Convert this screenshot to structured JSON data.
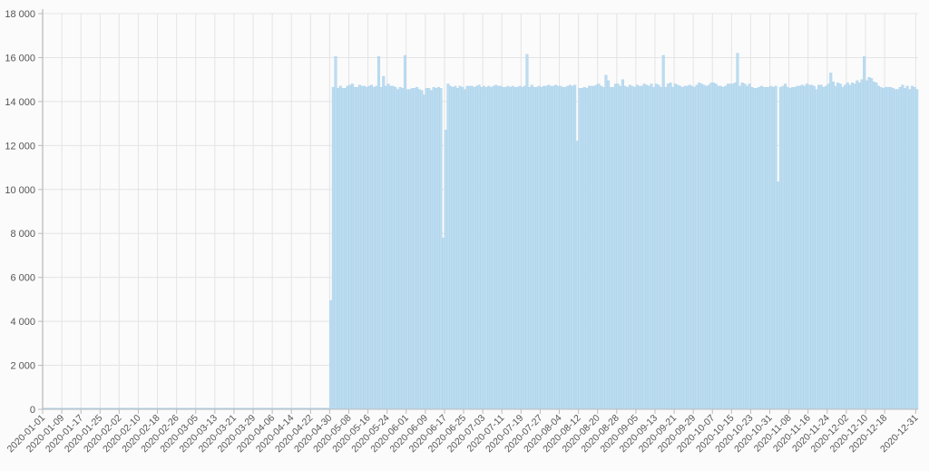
{
  "chart_data": {
    "type": "bar",
    "title": "",
    "xlabel": "",
    "ylabel": "",
    "ylim": [
      0,
      18000
    ],
    "yticks": [
      "0",
      "2 000",
      "4 000",
      "6 000",
      "8 000",
      "10 000",
      "12 000",
      "14 000",
      "16 000",
      "18 000"
    ],
    "ytick_values": [
      0,
      2000,
      4000,
      6000,
      8000,
      10000,
      12000,
      14000,
      16000,
      18000
    ],
    "grid": true,
    "bar_color": "#bcdcf0",
    "bar_edge_color": "#a8d0ea",
    "x_start": "2020-01-01",
    "x_end": "2020-12-31",
    "xtick_labels": [
      "2020-01-01",
      "2020-01-09",
      "2020-01-17",
      "2020-01-25",
      "2020-02-02",
      "2020-02-10",
      "2020-02-18",
      "2020-02-26",
      "2020-03-05",
      "2020-03-13",
      "2020-03-21",
      "2020-03-29",
      "2020-04-06",
      "2020-04-14",
      "2020-04-22",
      "2020-04-30",
      "2020-05-08",
      "2020-05-16",
      "2020-05-24",
      "2020-06-01",
      "2020-06-09",
      "2020-06-17",
      "2020-06-25",
      "2020-07-03",
      "2020-07-11",
      "2020-07-19",
      "2020-07-27",
      "2020-08-04",
      "2020-08-12",
      "2020-08-20",
      "2020-08-28",
      "2020-09-05",
      "2020-09-13",
      "2020-09-21",
      "2020-09-29",
      "2020-10-07",
      "2020-10-15",
      "2020-10-23",
      "2020-10-31",
      "2020-11-08",
      "2020-11-16",
      "2020-11-24",
      "2020-12-02",
      "2020-12-10",
      "2020-12-18",
      "2020-12-31"
    ],
    "values": [
      0,
      0,
      0,
      0,
      0,
      0,
      0,
      0,
      0,
      0,
      0,
      0,
      0,
      0,
      0,
      0,
      0,
      0,
      0,
      0,
      0,
      0,
      0,
      0,
      0,
      0,
      0,
      0,
      0,
      0,
      0,
      0,
      0,
      0,
      0,
      0,
      0,
      0,
      0,
      0,
      0,
      0,
      0,
      0,
      0,
      0,
      0,
      0,
      0,
      0,
      0,
      0,
      0,
      0,
      0,
      0,
      0,
      0,
      0,
      0,
      0,
      0,
      0,
      0,
      0,
      0,
      0,
      0,
      0,
      0,
      0,
      0,
      0,
      0,
      0,
      0,
      0,
      0,
      0,
      0,
      0,
      0,
      0,
      0,
      0,
      0,
      0,
      0,
      0,
      0,
      0,
      0,
      0,
      0,
      0,
      0,
      0,
      0,
      0,
      0,
      0,
      0,
      0,
      0,
      0,
      0,
      0,
      0,
      0,
      0,
      0,
      0,
      0,
      0,
      0,
      0,
      0,
      0,
      0,
      0,
      4950,
      14650,
      16050,
      14600,
      14700,
      14600,
      14600,
      14700,
      14750,
      14800,
      14650,
      14650,
      14750,
      14700,
      14700,
      14650,
      14700,
      14750,
      14650,
      14700,
      16050,
      14650,
      15150,
      14700,
      14800,
      14700,
      14700,
      14650,
      14550,
      14650,
      14600,
      16100,
      14550,
      14550,
      14600,
      14600,
      14650,
      14550,
      14500,
      14300,
      14600,
      14600,
      14500,
      14650,
      14600,
      14650,
      14600,
      7800,
      12700,
      14800,
      14700,
      14650,
      14700,
      14600,
      14700,
      14650,
      14550,
      14700,
      14700,
      14700,
      14650,
      14700,
      14750,
      14650,
      14700,
      14650,
      14700,
      14650,
      14700,
      14750,
      14700,
      14700,
      14650,
      14650,
      14700,
      14650,
      14700,
      14650,
      14650,
      14700,
      14650,
      14700,
      16150,
      14650,
      14750,
      14650,
      14650,
      14700,
      14650,
      14700,
      14700,
      14750,
      14700,
      14700,
      14750,
      14700,
      14700,
      14650,
      14650,
      14700,
      14750,
      14700,
      14750,
      12200,
      14600,
      14600,
      14650,
      14600,
      14700,
      14700,
      14700,
      14750,
      14800,
      14700,
      14650,
      15200,
      14950,
      14650,
      14650,
      14800,
      14800,
      14700,
      15000,
      14700,
      14650,
      14750,
      14700,
      14650,
      14750,
      14700,
      14700,
      14800,
      14750,
      14700,
      14800,
      14650,
      14800,
      14750,
      14650,
      16100,
      14650,
      14800,
      14850,
      14650,
      14800,
      14750,
      14700,
      14650,
      14700,
      14700,
      14750,
      14700,
      14650,
      14750,
      14850,
      14800,
      14750,
      14700,
      14750,
      14850,
      14850,
      14800,
      14700,
      14700,
      14650,
      14700,
      14800,
      14800,
      14800,
      14850,
      16200,
      14700,
      14850,
      14800,
      14700,
      14800,
      14650,
      14600,
      14600,
      14650,
      14700,
      14650,
      14650,
      14650,
      14700,
      14650,
      14700,
      10350,
      14650,
      14700,
      14800,
      14650,
      14600,
      14650,
      14650,
      14700,
      14700,
      14750,
      14700,
      14800,
      14750,
      14750,
      14700,
      14550,
      14750,
      14750,
      14650,
      14700,
      14800,
      15300,
      14900,
      14700,
      14850,
      14800,
      14650,
      14750,
      14850,
      14750,
      14850,
      14800,
      14950,
      14850,
      15000,
      16050,
      14950,
      15100,
      15050,
      14900,
      14850,
      14700,
      14650,
      14600,
      14650,
      14650,
      14650,
      14600,
      14550,
      14550,
      14650,
      14750,
      14600,
      14700,
      14550,
      14700,
      14650,
      14550
    ]
  }
}
